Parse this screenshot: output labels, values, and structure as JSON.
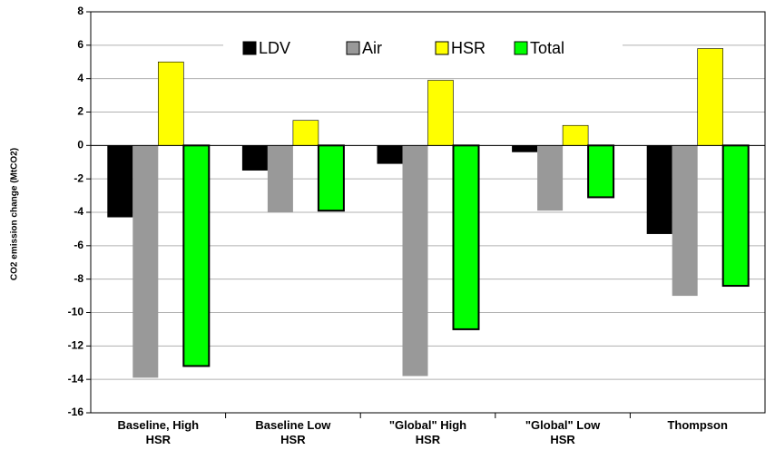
{
  "chart_data": {
    "type": "bar",
    "y_label": "CO2 emission change (MtCO2)",
    "categories": [
      "Baseline, High HSR",
      "Baseline Low HSR",
      "\"Global\" High HSR",
      "\"Global\" Low HSR",
      "Thompson"
    ],
    "series": [
      {
        "name": "LDV",
        "color": "#000000",
        "values": [
          -4.3,
          -1.5,
          -1.1,
          -0.4,
          -5.3
        ]
      },
      {
        "name": "Air",
        "color": "#999999",
        "values": [
          -13.9,
          -4.0,
          -13.8,
          -3.9,
          -9.0
        ]
      },
      {
        "name": "HSR",
        "color": "#ffff00",
        "values": [
          5.0,
          1.5,
          3.9,
          1.2,
          5.8
        ]
      },
      {
        "name": "Total",
        "color": "#00ff00",
        "values": [
          -13.2,
          -3.9,
          -11.0,
          -3.1,
          -8.4
        ]
      }
    ],
    "ylim": [
      -16,
      8
    ],
    "yticks": [
      -16,
      -14,
      -12,
      -10,
      -8,
      -6,
      -4,
      -2,
      0,
      2,
      4,
      6,
      8
    ],
    "grid": true,
    "legend": "top"
  }
}
